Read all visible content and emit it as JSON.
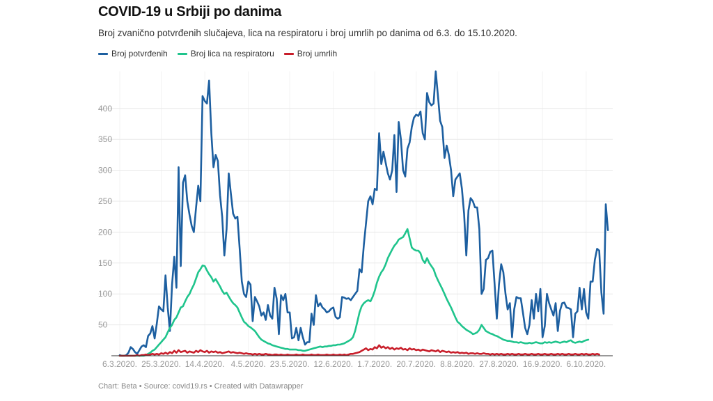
{
  "header": {
    "title": "COVID-19 u Srbiji po danima",
    "subtitle": "Broj zvanično potvrđenih slučajeva, lica na respiratoru i broj umrlih po danima od 6.3. do 15.10.2020."
  },
  "footer": "Chart: Beta • Source: covid19.rs • Created with Datawrapper",
  "chart_data": {
    "type": "line",
    "title": "COVID-19 u Srbiji po danima",
    "subtitle": "Broj zvanično potvrđenih slučajeva, lica na respiratoru i broj umrlih po danima od 6.3. do 15.10.2020.",
    "xlabel": "",
    "ylabel": "",
    "x_start": "6.3.2020.",
    "x_end": "15.10.2020.",
    "x_days": 225,
    "ylim": [
      0,
      460
    ],
    "yticks": [
      50,
      100,
      150,
      200,
      250,
      300,
      350,
      400
    ],
    "grid": true,
    "legend_position": "top-left",
    "xticks": [
      {
        "day": 0,
        "label": "6.3.2020."
      },
      {
        "day": 19,
        "label": "25.3.2020."
      },
      {
        "day": 39,
        "label": "14.4.2020."
      },
      {
        "day": 59,
        "label": "4.5.2020."
      },
      {
        "day": 78,
        "label": "23.5.2020."
      },
      {
        "day": 98,
        "label": "12.6.2020."
      },
      {
        "day": 117,
        "label": "1.7.2020."
      },
      {
        "day": 136,
        "label": "20.7.2020."
      },
      {
        "day": 155,
        "label": "8.8.2020."
      },
      {
        "day": 174,
        "label": "27.8.2020."
      },
      {
        "day": 194,
        "label": "16.9.2020."
      },
      {
        "day": 214,
        "label": "6.10.2020."
      }
    ],
    "series": [
      {
        "name": "Broj potvrđenih",
        "color": "#1d5fa0",
        "values": [
          1,
          0,
          0,
          1,
          5,
          14,
          11,
          6,
          3,
          9,
          15,
          17,
          14,
          32,
          36,
          48,
          28,
          52,
          80,
          75,
          72,
          130,
          78,
          40,
          115,
          160,
          110,
          305,
          145,
          280,
          292,
          250,
          228,
          210,
          200,
          240,
          275,
          250,
          420,
          412,
          408,
          445,
          360,
          305,
          325,
          315,
          260,
          225,
          162,
          205,
          295,
          262,
          230,
          222,
          225,
          175,
          120,
          100,
          95,
          120,
          115,
          56,
          95,
          88,
          80,
          65,
          70,
          58,
          82,
          65,
          60,
          110,
          92,
          35,
          98,
          90,
          100,
          70,
          70,
          28,
          30,
          45,
          25,
          45,
          30,
          18,
          22,
          22,
          68,
          50,
          98,
          80,
          85,
          78,
          75,
          70,
          72,
          76,
          78,
          63,
          60,
          62,
          95,
          94,
          92,
          93,
          90,
          95,
          100,
          105,
          140,
          135,
          180,
          215,
          250,
          258,
          245,
          270,
          268,
          360,
          310,
          330,
          312,
          295,
          285,
          300,
          357,
          265,
          378,
          350,
          300,
          290,
          335,
          345,
          370,
          385,
          390,
          388,
          395,
          360,
          350,
          425,
          410,
          405,
          408,
          460,
          420,
          380,
          370,
          320,
          340,
          325,
          300,
          258,
          285,
          290,
          295,
          270,
          230,
          162,
          235,
          255,
          250,
          240,
          240,
          205,
          100,
          108,
          155,
          158,
          168,
          170,
          115,
          60,
          115,
          148,
          135,
          100,
          75,
          85,
          30,
          75,
          95,
          93,
          93,
          70,
          45,
          35,
          50,
          90,
          60,
          100,
          72,
          108,
          30,
          48,
          100,
          85,
          75,
          65,
          85,
          40,
          73,
          85,
          86,
          78,
          77,
          75,
          30,
          68,
          72,
          110,
          75,
          108,
          70,
          60,
          120,
          120,
          155,
          173,
          170,
          102,
          68,
          245,
          203
        ]
      },
      {
        "name": "Broj lica na respiratoru",
        "color": "#1fc48c",
        "values": [
          0,
          0,
          0,
          0,
          0,
          0,
          0,
          0,
          0,
          0,
          0,
          0,
          1,
          3,
          5,
          8,
          10,
          14,
          18,
          22,
          26,
          30,
          38,
          45,
          50,
          58,
          62,
          70,
          78,
          80,
          88,
          95,
          100,
          108,
          115,
          125,
          135,
          140,
          146,
          145,
          138,
          132,
          127,
          120,
          124,
          118,
          112,
          105,
          100,
          102,
          96,
          90,
          85,
          82,
          78,
          70,
          62,
          55,
          52,
          48,
          46,
          43,
          40,
          35,
          30,
          26,
          24,
          22,
          20,
          19,
          17,
          16,
          15,
          14,
          13,
          12,
          11,
          11,
          10,
          10,
          10,
          10,
          9,
          9,
          8,
          8,
          9,
          10,
          11,
          12,
          13,
          14,
          15,
          14,
          15,
          15,
          16,
          16,
          17,
          17,
          18,
          18,
          19,
          20,
          22,
          24,
          26,
          30,
          40,
          55,
          70,
          80,
          85,
          88,
          90,
          88,
          95,
          105,
          118,
          128,
          135,
          140,
          148,
          158,
          165,
          172,
          178,
          182,
          188,
          190,
          192,
          198,
          205,
          190,
          175,
          172,
          170,
          170,
          166,
          155,
          150,
          158,
          150,
          145,
          140,
          130,
          122,
          115,
          108,
          100,
          92,
          85,
          78,
          70,
          62,
          55,
          52,
          48,
          45,
          42,
          40,
          38,
          35,
          36,
          38,
          42,
          50,
          45,
          40,
          38,
          36,
          35,
          33,
          32,
          30,
          28,
          26,
          25,
          24,
          24,
          23,
          22,
          22,
          21,
          22,
          21,
          20,
          20,
          21,
          20,
          21,
          22,
          21,
          20,
          20,
          22,
          21,
          22,
          21,
          22,
          23,
          22,
          21,
          22,
          23,
          22,
          24,
          25,
          22,
          21,
          22,
          23,
          22,
          24,
          25,
          26
        ]
      },
      {
        "name": "Broj umrlih",
        "color": "#c81e2a",
        "values": [
          0,
          0,
          0,
          0,
          0,
          0,
          0,
          0,
          1,
          0,
          1,
          1,
          2,
          1,
          2,
          3,
          2,
          3,
          2,
          4,
          3,
          5,
          3,
          6,
          4,
          8,
          5,
          9,
          6,
          7,
          8,
          5,
          7,
          6,
          5,
          8,
          6,
          9,
          7,
          6,
          8,
          5,
          7,
          6,
          7,
          5,
          6,
          4,
          5,
          6,
          7,
          5,
          6,
          5,
          4,
          5,
          4,
          3,
          4,
          3,
          3,
          2,
          3,
          2,
          3,
          2,
          2,
          3,
          2,
          2,
          1,
          2,
          2,
          1,
          2,
          1,
          1,
          2,
          1,
          1,
          1,
          2,
          1,
          1,
          2,
          1,
          1,
          1,
          2,
          1,
          1,
          2,
          1,
          1,
          1,
          2,
          1,
          1,
          2,
          1,
          1,
          2,
          1,
          2,
          1,
          2,
          3,
          3,
          4,
          5,
          6,
          8,
          10,
          12,
          9,
          11,
          10,
          14,
          12,
          17,
          13,
          15,
          12,
          14,
          11,
          13,
          10,
          12,
          11,
          13,
          10,
          11,
          9,
          12,
          10,
          11,
          9,
          10,
          8,
          10,
          9,
          8,
          7,
          9,
          8,
          7,
          9,
          6,
          8,
          7,
          6,
          7,
          5,
          6,
          5,
          6,
          4,
          5,
          4,
          5,
          3,
          4,
          4,
          3,
          4,
          3,
          3,
          4,
          3,
          3,
          2,
          3,
          2,
          3,
          2,
          3,
          2,
          2,
          3,
          2,
          3,
          2,
          2,
          3,
          2,
          2,
          3,
          2,
          2,
          3,
          2,
          2,
          3,
          2,
          2,
          3,
          2,
          2,
          3,
          2,
          2,
          3,
          2,
          3,
          2,
          2,
          3,
          2,
          2,
          3,
          2,
          2,
          3,
          2,
          3,
          2,
          2,
          3,
          2,
          3,
          2
        ]
      }
    ]
  }
}
